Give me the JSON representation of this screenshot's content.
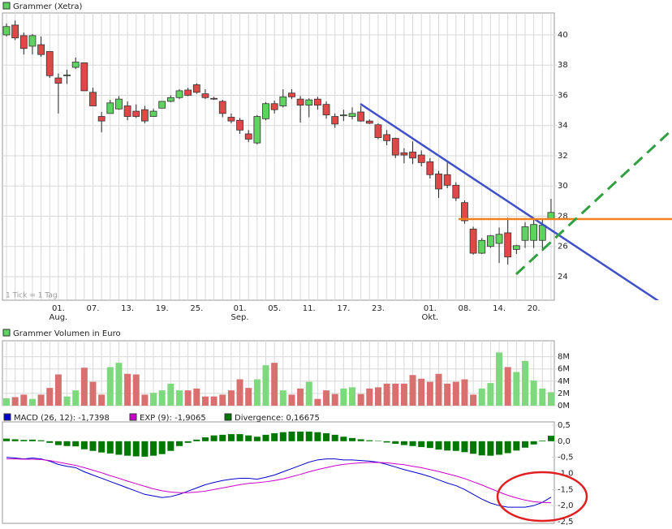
{
  "chart_data": [
    {
      "type": "candlestick",
      "title": "Grammer (Xetra)",
      "note": "1 Tick = 1 Tag",
      "categories": [
        null,
        null,
        null,
        null,
        null,
        null,
        "01.",
        null,
        null,
        null,
        "07.",
        null,
        null,
        null,
        "13.",
        null,
        null,
        null,
        "19.",
        null,
        null,
        null,
        "25.",
        null,
        null,
        null,
        null,
        "01.",
        null,
        null,
        null,
        "05.",
        null,
        null,
        null,
        "11.",
        null,
        null,
        null,
        "17.",
        null,
        null,
        null,
        "23.",
        null,
        null,
        null,
        null,
        null,
        "01.",
        null,
        null,
        null,
        "08.",
        null,
        null,
        null,
        "14.",
        null,
        null,
        null,
        "20.",
        null,
        null
      ],
      "month_labels": [
        null,
        null,
        null,
        null,
        null,
        null,
        "Aug.",
        null,
        null,
        null,
        null,
        null,
        null,
        null,
        null,
        null,
        null,
        null,
        null,
        null,
        null,
        null,
        null,
        null,
        null,
        null,
        null,
        "Sep.",
        null,
        null,
        null,
        null,
        null,
        null,
        null,
        null,
        null,
        null,
        null,
        null,
        null,
        null,
        null,
        null,
        null,
        null,
        null,
        null,
        null,
        "Okt.",
        null,
        null,
        null,
        null,
        null,
        null,
        null,
        null,
        null,
        null,
        null,
        null,
        null,
        null
      ],
      "open": [
        40.0,
        40.65,
        39.95,
        39.25,
        39.35,
        38.9,
        37.15,
        37.35,
        37.85,
        38.15,
        36.2,
        34.6,
        34.8,
        35.1,
        35.3,
        34.95,
        35.05,
        34.6,
        35.15,
        35.6,
        35.85,
        36.35,
        36.7,
        36.1,
        35.8,
        35.6,
        34.55,
        34.35,
        33.45,
        32.85,
        34.45,
        35.45,
        35.3,
        36.15,
        35.75,
        35.35,
        35.75,
        35.4,
        34.6,
        34.7,
        34.6,
        34.9,
        34.3,
        34.05,
        33.4,
        33.15,
        32.2,
        32.25,
        32.05,
        31.6,
        30.8,
        30.75,
        30.05,
        28.9,
        27.15,
        25.55,
        26.0,
        26.2,
        26.9,
        25.8,
        26.4,
        26.4,
        26.4,
        27.8
      ],
      "high": [
        40.75,
        40.95,
        40.15,
        40.05,
        39.9,
        38.9,
        37.45,
        37.7,
        38.5,
        38.15,
        36.5,
        34.9,
        35.7,
        35.95,
        35.6,
        35.4,
        35.3,
        35.1,
        35.6,
        36.0,
        36.4,
        36.5,
        36.8,
        36.4,
        35.9,
        35.7,
        34.8,
        34.5,
        33.7,
        34.7,
        35.55,
        35.65,
        36.4,
        36.4,
        35.95,
        35.8,
        35.9,
        35.6,
        34.8,
        35.05,
        35.2,
        35.3,
        34.4,
        34.15,
        33.7,
        33.2,
        32.5,
        32.95,
        32.35,
        31.85,
        31.0,
        31.55,
        30.25,
        29.05,
        27.3,
        26.55,
        26.75,
        27.25,
        27.9,
        26.1,
        27.6,
        27.8,
        27.8,
        29.15
      ],
      "low": [
        39.9,
        39.65,
        38.7,
        38.7,
        38.55,
        37.15,
        34.8,
        36.75,
        37.75,
        36.3,
        35.3,
        33.55,
        34.8,
        35.05,
        34.35,
        34.5,
        34.15,
        34.6,
        35.15,
        35.55,
        35.75,
        35.95,
        36.1,
        35.75,
        35.7,
        34.55,
        34.15,
        33.45,
        32.9,
        32.75,
        34.35,
        34.8,
        35.2,
        35.75,
        34.2,
        34.55,
        35.05,
        34.45,
        33.85,
        34.3,
        34.4,
        34.25,
        34.1,
        33.1,
        32.7,
        31.85,
        31.5,
        31.45,
        31.3,
        30.5,
        29.2,
        29.85,
        29.0,
        27.5,
        25.45,
        25.5,
        25.9,
        24.9,
        24.8,
        25.5,
        25.9,
        25.9,
        25.7,
        27.8
      ],
      "close": [
        40.55,
        39.8,
        39.1,
        39.95,
        38.7,
        37.3,
        36.8,
        37.35,
        38.2,
        36.3,
        35.3,
        34.3,
        35.5,
        35.75,
        34.6,
        34.6,
        34.3,
        34.95,
        35.6,
        35.85,
        36.3,
        36.0,
        36.2,
        35.85,
        35.75,
        34.8,
        34.3,
        33.7,
        33.1,
        34.6,
        35.45,
        35.05,
        35.9,
        35.9,
        35.35,
        35.7,
        35.35,
        34.7,
        34.1,
        34.7,
        34.8,
        34.3,
        34.15,
        33.2,
        33.0,
        32.05,
        32.05,
        31.85,
        31.55,
        30.75,
        29.8,
        30.05,
        29.2,
        27.7,
        25.55,
        26.4,
        26.7,
        26.8,
        25.3,
        26.05,
        27.3,
        27.45,
        27.4,
        28.25
      ],
      "up_color": "#5fd35f",
      "down_color": "#e04848",
      "ylim": [
        22.44,
        41.45
      ],
      "yticks": [
        24,
        26,
        28,
        30,
        32,
        34,
        36,
        38,
        40
      ],
      "grid": true
    },
    {
      "type": "bar",
      "title": "Grammer Volumen in Euro",
      "values": [
        1.2,
        1.4,
        1.8,
        1.1,
        1.8,
        2.9,
        5.1,
        1.5,
        2.5,
        6.2,
        3.9,
        1.8,
        6.3,
        7.0,
        5.2,
        5.1,
        1.8,
        2.1,
        2.5,
        3.6,
        2.5,
        2.5,
        2.8,
        1.5,
        1.5,
        1.8,
        2.5,
        4.3,
        2.9,
        4.3,
        6.6,
        7.0,
        2.5,
        1.8,
        2.8,
        3.9,
        1.1,
        2.5,
        1.9,
        2.8,
        3.0,
        1.9,
        2.8,
        3.0,
        3.6,
        3.6,
        3.6,
        5.0,
        4.4,
        3.9,
        5.2,
        3.6,
        3.9,
        4.3,
        1.8,
        2.8,
        3.7,
        8.7,
        6.3,
        5.5,
        7.3,
        4.1,
        2.8,
        2.2
      ],
      "up_color": "#7ed97e",
      "down_color": "#d97070",
      "ylim": [
        0,
        10.6
      ],
      "yticks": [
        {
          "value": 0,
          "label": "0M"
        },
        {
          "value": 2,
          "label": "2M"
        },
        {
          "value": 4,
          "label": "4M"
        },
        {
          "value": 6,
          "label": "6M"
        },
        {
          "value": 8,
          "label": "8M"
        }
      ],
      "grid": true
    },
    {
      "type": "line",
      "series": [
        {
          "name": "MACD (26, 12): -1,7398",
          "color": "#0000cc",
          "values": [
            -0.5,
            -0.52,
            -0.55,
            -0.52,
            -0.55,
            -0.62,
            -0.72,
            -0.78,
            -0.82,
            -0.95,
            -1.05,
            -1.15,
            -1.25,
            -1.35,
            -1.45,
            -1.55,
            -1.65,
            -1.7,
            -1.75,
            -1.72,
            -1.65,
            -1.55,
            -1.45,
            -1.35,
            -1.28,
            -1.22,
            -1.18,
            -1.15,
            -1.15,
            -1.18,
            -1.12,
            -1.05,
            -0.95,
            -0.85,
            -0.75,
            -0.65,
            -0.58,
            -0.55,
            -0.55,
            -0.58,
            -0.58,
            -0.6,
            -0.62,
            -0.65,
            -0.72,
            -0.8,
            -0.88,
            -0.95,
            -1.02,
            -1.1,
            -1.2,
            -1.3,
            -1.38,
            -1.5,
            -1.65,
            -1.8,
            -1.92,
            -2.0,
            -2.05,
            -2.05,
            -2.05,
            -2.0,
            -1.9,
            -1.74
          ]
        },
        {
          "name": "EXP (9): -1,9065",
          "color": "#cc00cc",
          "values": [
            -0.55,
            -0.55,
            -0.56,
            -0.56,
            -0.57,
            -0.6,
            -0.65,
            -0.7,
            -0.75,
            -0.82,
            -0.9,
            -0.98,
            -1.07,
            -1.15,
            -1.24,
            -1.32,
            -1.4,
            -1.48,
            -1.54,
            -1.58,
            -1.6,
            -1.6,
            -1.58,
            -1.55,
            -1.5,
            -1.45,
            -1.4,
            -1.35,
            -1.31,
            -1.29,
            -1.26,
            -1.22,
            -1.17,
            -1.1,
            -1.03,
            -0.95,
            -0.88,
            -0.82,
            -0.76,
            -0.72,
            -0.69,
            -0.67,
            -0.66,
            -0.66,
            -0.67,
            -0.7,
            -0.73,
            -0.78,
            -0.82,
            -0.88,
            -0.94,
            -1.01,
            -1.08,
            -1.16,
            -1.26,
            -1.36,
            -1.47,
            -1.58,
            -1.68,
            -1.76,
            -1.83,
            -1.88,
            -1.9,
            -1.91
          ]
        },
        {
          "name": "Divergence: 0,16675",
          "color": "#007700",
          "type": "bar",
          "values": [
            0.08,
            0.06,
            0.04,
            0.05,
            0.03,
            -0.05,
            -0.12,
            -0.15,
            -0.16,
            -0.25,
            -0.3,
            -0.35,
            -0.38,
            -0.42,
            -0.45,
            -0.47,
            -0.48,
            -0.45,
            -0.4,
            -0.3,
            -0.15,
            -0.05,
            0.05,
            0.12,
            0.18,
            0.2,
            0.22,
            0.22,
            0.18,
            0.14,
            0.2,
            0.25,
            0.28,
            0.3,
            0.3,
            0.3,
            0.28,
            0.25,
            0.2,
            0.14,
            0.1,
            0.06,
            0.03,
            0.01,
            -0.04,
            -0.08,
            -0.12,
            -0.15,
            -0.18,
            -0.21,
            -0.26,
            -0.29,
            -0.3,
            -0.34,
            -0.39,
            -0.44,
            -0.45,
            -0.42,
            -0.37,
            -0.29,
            -0.2,
            -0.1,
            0.02,
            0.17
          ]
        }
      ],
      "ylim": [
        -2.55,
        0.6
      ],
      "yticks": [
        {
          "value": 0.5,
          "label": "0,5"
        },
        {
          "value": 0,
          "label": "0,0"
        },
        {
          "value": -0.5,
          "label": "-0,5"
        },
        {
          "value": -1,
          "label": "-1,0"
        },
        {
          "value": -1.5,
          "label": "-1,5"
        },
        {
          "value": -2,
          "label": "-2,0"
        },
        {
          "value": -2.5,
          "label": "-2,5"
        }
      ]
    }
  ]
}
